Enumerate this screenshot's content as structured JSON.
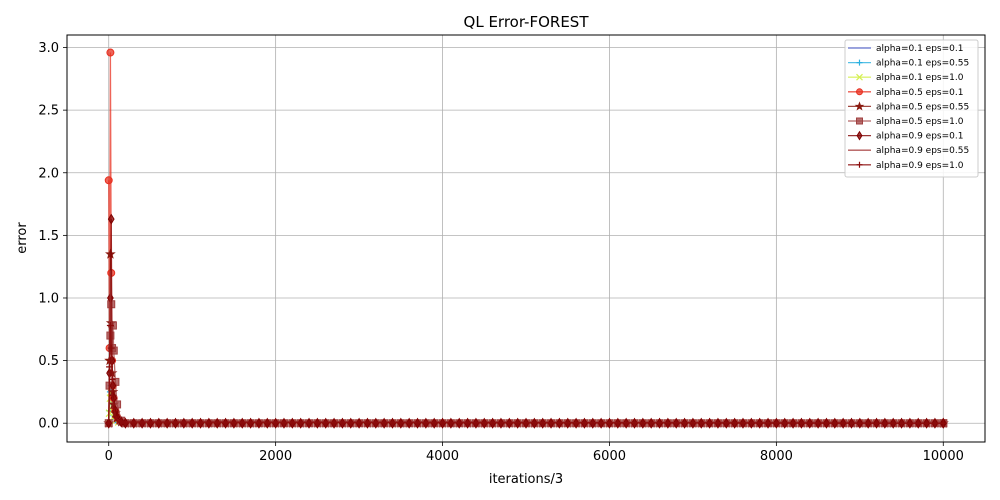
{
  "chart_data": {
    "type": "line",
    "title": "QL Error-FOREST",
    "xlabel": "iterations/3",
    "ylabel": "error",
    "xlim": [
      -500,
      10500
    ],
    "ylim": [
      -0.15,
      3.1
    ],
    "x_ticks": [
      0,
      2000,
      4000,
      6000,
      8000,
      10000
    ],
    "x_tick_labels": [
      "0",
      "2000",
      "4000",
      "6000",
      "8000",
      "10000"
    ],
    "y_ticks": [
      0.0,
      0.5,
      1.0,
      1.5,
      2.0,
      2.5,
      3.0
    ],
    "y_tick_labels": [
      "0.0",
      "0.5",
      "1.0",
      "1.5",
      "2.0",
      "2.5",
      "3.0"
    ],
    "grid": true,
    "legend_position": "top-right",
    "series": [
      {
        "name": "alpha=0.1 eps=0.1",
        "color": "#3b4cc0",
        "marker": "none",
        "x": [
          0,
          10,
          20,
          30,
          40,
          60,
          80,
          120,
          200,
          10000
        ],
        "values": [
          0.0,
          0.12,
          0.3,
          0.2,
          0.1,
          0.05,
          0.02,
          0.01,
          0.0,
          0.0
        ]
      },
      {
        "name": "alpha=0.1 eps=0.55",
        "color": "#2ab0e0",
        "marker": "plus",
        "x": [
          0,
          10,
          20,
          30,
          40,
          60,
          80,
          120,
          200,
          10000
        ],
        "values": [
          0.0,
          0.1,
          0.25,
          0.3,
          0.15,
          0.06,
          0.03,
          0.01,
          0.0,
          0.0
        ]
      },
      {
        "name": "alpha=0.1 eps=1.0",
        "color": "#d4f050",
        "marker": "x",
        "x": [
          0,
          10,
          20,
          30,
          40,
          60,
          80,
          120,
          200,
          10000
        ],
        "values": [
          0.0,
          0.08,
          0.2,
          0.25,
          0.1,
          0.05,
          0.02,
          0.01,
          0.0,
          0.0
        ]
      },
      {
        "name": "alpha=0.5 eps=0.1",
        "color": "#e83020",
        "marker": "circle",
        "x": [
          0,
          10,
          20,
          30,
          40,
          50,
          60,
          80,
          100,
          150,
          10000
        ],
        "values": [
          1.94,
          0.6,
          2.96,
          1.2,
          0.5,
          0.3,
          0.2,
          0.1,
          0.05,
          0.01,
          0.0
        ]
      },
      {
        "name": "alpha=0.5 eps=0.55",
        "color": "#8a1a10",
        "marker": "star",
        "x": [
          0,
          10,
          20,
          30,
          40,
          50,
          60,
          80,
          100,
          150,
          10000
        ],
        "values": [
          0.0,
          0.5,
          1.35,
          0.8,
          0.4,
          0.25,
          0.15,
          0.08,
          0.04,
          0.01,
          0.0
        ]
      },
      {
        "name": "alpha=0.5 eps=1.0",
        "color": "#a04040",
        "marker": "square",
        "x": [
          0,
          10,
          20,
          30,
          40,
          50,
          60,
          80,
          100,
          150,
          10000
        ],
        "values": [
          0.0,
          0.3,
          0.7,
          0.95,
          0.6,
          0.78,
          0.58,
          0.33,
          0.15,
          0.02,
          0.0
        ]
      },
      {
        "name": "alpha=0.9 eps=0.1",
        "color": "#800000",
        "marker": "diamond",
        "x": [
          0,
          10,
          20,
          30,
          40,
          50,
          60,
          80,
          100,
          150,
          10000
        ],
        "values": [
          0.0,
          0.4,
          1.0,
          1.63,
          0.5,
          0.3,
          0.2,
          0.1,
          0.05,
          0.01,
          0.0
        ]
      },
      {
        "name": "alpha=0.9 eps=0.55",
        "color": "#a03030",
        "marker": "none",
        "x": [
          0,
          10,
          20,
          30,
          40,
          50,
          60,
          80,
          100,
          150,
          10000
        ],
        "values": [
          0.0,
          0.35,
          1.22,
          0.7,
          0.4,
          0.2,
          0.12,
          0.06,
          0.03,
          0.01,
          0.0
        ]
      },
      {
        "name": "alpha=0.9 eps=1.0",
        "color": "#8b0a0a",
        "marker": "plus",
        "x": [
          0,
          10,
          20,
          30,
          40,
          50,
          60,
          80,
          100,
          150,
          10000
        ],
        "values": [
          0.0,
          0.45,
          0.78,
          0.6,
          0.35,
          0.22,
          0.12,
          0.05,
          0.02,
          0.01,
          0.0
        ]
      }
    ]
  }
}
